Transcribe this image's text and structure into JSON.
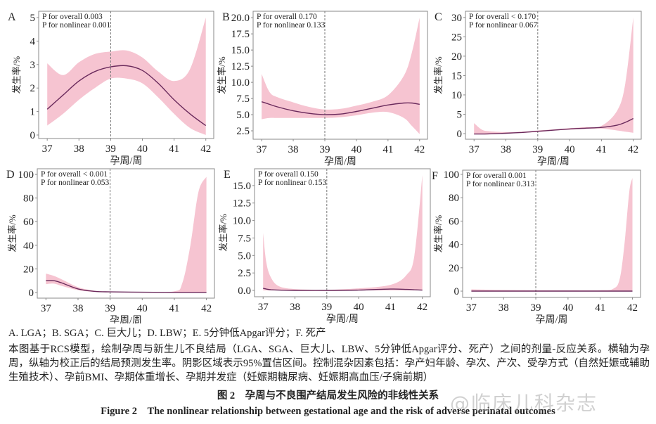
{
  "chart_data": [
    {
      "panel": "A",
      "type": "line",
      "annotation": [
        "P for overall 0.003",
        "P for nonlinear 0.001"
      ],
      "xlabel": "孕周/周",
      "ylabel": "发生率/%",
      "xlim": [
        36.73,
        42.25
      ],
      "ylim": [
        -0.15,
        5.27
      ],
      "xticks": [
        "37",
        "38",
        "39",
        "40",
        "41",
        "42"
      ],
      "yticks": [
        "0",
        "1",
        "2",
        "3",
        "4",
        "5"
      ],
      "reference_x": 39,
      "x": [
        37,
        37.5,
        38,
        38.5,
        39,
        39.5,
        40,
        40.5,
        41,
        41.5,
        42
      ],
      "fit": [
        1.1,
        1.7,
        2.3,
        2.7,
        2.9,
        2.95,
        2.75,
        2.2,
        1.5,
        0.9,
        0.4
      ],
      "lower": [
        0.4,
        0.9,
        1.5,
        2.0,
        2.4,
        2.4,
        2.2,
        1.6,
        0.9,
        0.3,
        0.0
      ],
      "upper": [
        3.05,
        2.55,
        3.1,
        3.45,
        3.55,
        3.6,
        3.3,
        2.7,
        2.3,
        2.8,
        5.0
      ]
    },
    {
      "panel": "B",
      "type": "line",
      "annotation": [
        "P for overall 0.170",
        "P for nonlinear 0.133"
      ],
      "xlabel": "孕周/周",
      "ylabel": "发生率/%",
      "xlim": [
        36.73,
        42.25
      ],
      "ylim": [
        1.2,
        21.0
      ],
      "xticks": [
        "37",
        "38",
        "39",
        "40",
        "41",
        "42"
      ],
      "yticks": [
        "2.5",
        "5.0",
        "7.5",
        "10.0",
        "12.5",
        "15.0",
        "17.5",
        "20.0"
      ],
      "reference_x": 39,
      "x": [
        37,
        37.25,
        37.5,
        38,
        38.5,
        39,
        39.5,
        40,
        40.5,
        41,
        41.5,
        41.75,
        42
      ],
      "fit": [
        7.0,
        6.6,
        6.2,
        5.6,
        5.2,
        5.0,
        5.1,
        5.5,
        6.0,
        6.5,
        6.8,
        6.8,
        6.6
      ],
      "lower": [
        4.3,
        4.5,
        4.5,
        4.5,
        4.5,
        4.5,
        4.6,
        4.9,
        5.3,
        5.4,
        4.5,
        3.3,
        2.0
      ],
      "upper": [
        11.3,
        8.5,
        7.7,
        6.9,
        6.2,
        5.8,
        5.9,
        6.4,
        7.0,
        8.0,
        11.0,
        14.5,
        20.0
      ]
    },
    {
      "panel": "C",
      "type": "line",
      "annotation": [
        "P for overall < 0.170",
        "P for nonlinear 0.067"
      ],
      "xlabel": "孕周/周",
      "ylabel": "发生率/%",
      "xlim": [
        36.73,
        42.25
      ],
      "ylim": [
        -1.45,
        31.6
      ],
      "xticks": [
        "37",
        "38",
        "39",
        "40",
        "41",
        "42"
      ],
      "yticks": [
        "0",
        "5",
        "10",
        "15",
        "20",
        "25",
        "30"
      ],
      "reference_x": 39,
      "x": [
        37,
        37.25,
        37.5,
        38,
        38.5,
        39,
        39.5,
        40,
        40.5,
        41,
        41.5,
        41.75,
        42
      ],
      "fit": [
        -0.1,
        -0.1,
        -0.05,
        0.1,
        0.3,
        0.6,
        0.9,
        1.2,
        1.4,
        1.6,
        2.2,
        2.9,
        3.9
      ],
      "lower": [
        -0.2,
        -0.2,
        -0.2,
        0.0,
        0.2,
        0.4,
        0.8,
        1.0,
        1.2,
        1.3,
        0.8,
        0.5,
        0.2
      ],
      "upper": [
        2.7,
        1.0,
        0.6,
        0.4,
        0.5,
        0.8,
        1.1,
        1.4,
        1.7,
        2.0,
        6.0,
        13.0,
        30.0
      ]
    },
    {
      "panel": "D",
      "type": "line",
      "annotation": [
        "P for overall < 0.001",
        "P for nonlinear 0.053"
      ],
      "xlabel": "孕周/周",
      "ylabel": "发生率/%",
      "xlim": [
        36.73,
        42.25
      ],
      "ylim": [
        -4.8,
        104.8
      ],
      "xticks": [
        "37",
        "38",
        "39",
        "40",
        "41",
        "42"
      ],
      "yticks": [
        "0",
        "20",
        "40",
        "60",
        "80",
        "100"
      ],
      "reference_x": 39,
      "x": [
        37,
        37.25,
        37.5,
        38,
        38.5,
        39,
        40,
        41,
        41.25,
        41.5,
        41.75,
        42
      ],
      "fit": [
        10,
        10,
        8,
        3,
        1,
        0.5,
        0.2,
        0,
        0,
        0,
        0,
        0
      ],
      "lower": [
        7,
        7.5,
        5.5,
        2,
        0.5,
        0.2,
        0,
        0,
        0,
        0,
        0,
        0
      ],
      "upper": [
        16,
        14,
        11,
        4.5,
        1.5,
        0.8,
        0.5,
        1,
        8,
        40,
        85,
        98
      ]
    },
    {
      "panel": "E",
      "type": "line",
      "annotation": [
        "P for overall 0.150",
        "P for nonlinear 0.153"
      ],
      "xlabel": "孕周/周",
      "ylabel": "发生率/%",
      "xlim": [
        36.73,
        42.25
      ],
      "ylim": [
        -0.9,
        17.4
      ],
      "xticks": [
        "37",
        "38",
        "39",
        "40",
        "41",
        "42"
      ],
      "yticks": [
        "0.0",
        "2.5",
        "5.0",
        "7.5",
        "10.0",
        "12.5",
        "15.0"
      ],
      "reference_x": 39,
      "x": [
        37,
        37.1,
        37.25,
        37.5,
        38,
        39,
        40,
        41,
        41.5,
        41.75,
        42
      ],
      "fit": [
        0.3,
        0.2,
        0.1,
        0.05,
        0,
        0,
        0.05,
        0.2,
        0.15,
        0.1,
        0.05
      ],
      "lower": [
        0,
        0,
        0,
        0,
        0,
        0,
        0,
        0,
        0,
        0,
        0
      ],
      "upper": [
        8.2,
        4.0,
        1.8,
        0.6,
        0.2,
        0.1,
        0.3,
        0.8,
        2.2,
        5.0,
        16.5
      ]
    },
    {
      "panel": "F",
      "type": "line",
      "annotation": [
        "P for overall 0.001",
        "P for nonlinear 0.313"
      ],
      "xlabel": "孕周/周",
      "ylabel": "发生率/%",
      "xlim": [
        36.73,
        42.25
      ],
      "ylim": [
        -5.4,
        103.6
      ],
      "xticks": [
        "37",
        "38",
        "39",
        "40",
        "41",
        "42"
      ],
      "yticks": [
        "0",
        "20",
        "40",
        "60",
        "80",
        "100"
      ],
      "reference_x": 39,
      "x": [
        37,
        38,
        39,
        40,
        41,
        41.4,
        41.6,
        41.75,
        41.9,
        42
      ],
      "fit": [
        0,
        0,
        0,
        0,
        0,
        0,
        0,
        0,
        0,
        0
      ],
      "lower": [
        0,
        0,
        0,
        0,
        0,
        0,
        0,
        0,
        0,
        0
      ],
      "upper": [
        1.5,
        1,
        0.8,
        0.8,
        0.8,
        2,
        10,
        40,
        85,
        97
      ]
    }
  ],
  "colors": {
    "band": "#f6c4d1",
    "line": "#6a2a5c",
    "reference": "#777777",
    "frame": "#8a8a8a"
  },
  "caption": {
    "legend": "A. LGA；B. SGA；C. 巨大儿；D. LBW；E. 5分钟低Apgar评分；F. 死产",
    "note": "本图基于RCS模型，绘制孕周与新生儿不良结局（LGA、SGA、巨大儿、LBW、5分钟低Apgar评分、死产）之间的剂量-反应关系。横轴为孕周，纵轴为校正后的结局预测发生率。阴影区域表示95%置信区间。控制混杂因素包括：孕产妇年龄、孕次、产次、受孕方式（自然妊娠或辅助生殖技术）、孕前BMI、孕期体重增长、孕期并发症（妊娠期糖尿病、妊娠期高血压/子痫前期）",
    "title_cn": "图 2　孕周与不良围产结局发生风险的非线性关系",
    "title_en": "Figure 2　The nonlinear relationship between gestational age and the risk of adverse perinatal outcomes"
  },
  "watermark": "@临床儿科杂志"
}
